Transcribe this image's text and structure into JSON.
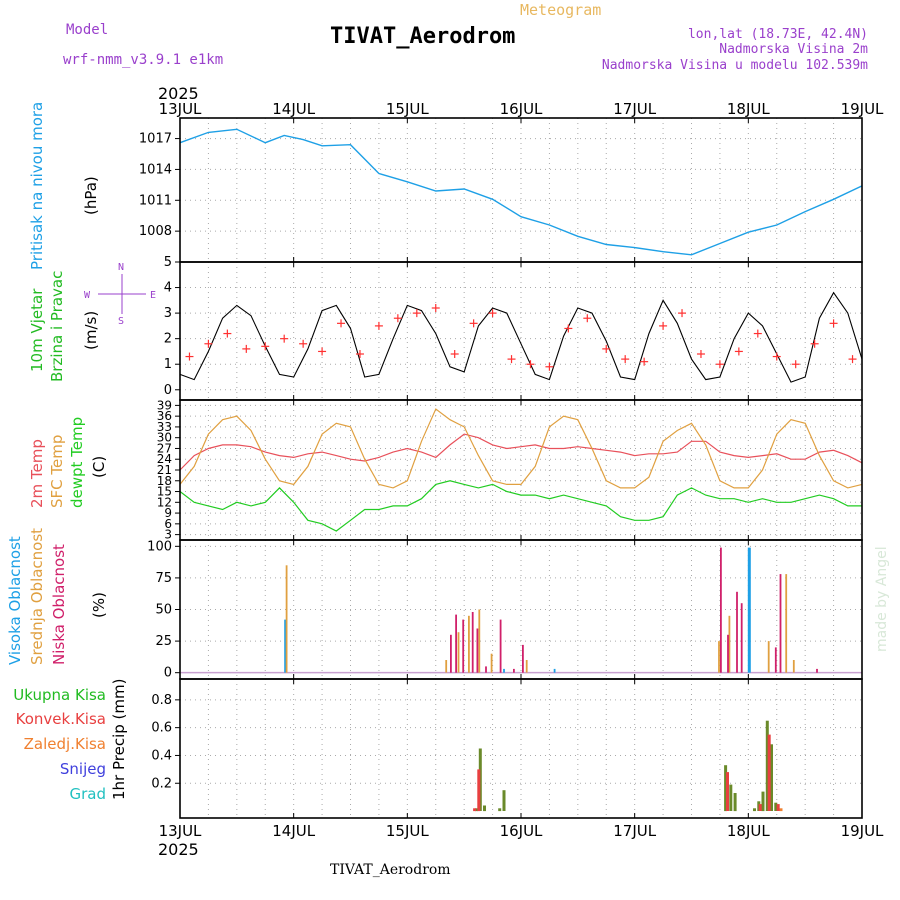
{
  "header": {
    "model_label": "Model",
    "model_name": "wrf-nmm_v3.9.1 e1km",
    "product": "Meteogram",
    "station": "TIVAT_Aerodrom",
    "lonlat": "lon,lat (18.73E, 42.4N)",
    "altitude": "Nadmorska Visina 2m",
    "model_altitude": "Nadmorska Visina u modelu 102.539m",
    "footer_station": "TIVAT_Aerodrom",
    "credit": "made by Angel"
  },
  "colors": {
    "pressure": "#1ea0e6",
    "temp2m": "#e8505a",
    "sfc_temp": "#e0a040",
    "dewpoint": "#22cc22",
    "high_cloud": "#1ea0e6",
    "mid_cloud": "#e0a040",
    "low_cloud": "#d0206a",
    "total_precip": "#22bb22",
    "conv_precip": "#e84040",
    "frozen_precip": "#f08030",
    "snow": "#4040dd",
    "hail": "#20c0c0",
    "wind_speed": "#000000",
    "gust": "#ff3030",
    "model_label": "#9a40cc",
    "meteogram_title": "#e8b860",
    "credit": "#d8e8d8",
    "dir_legend": "#9a40cc"
  },
  "time_axis": {
    "year_top": "2025",
    "year_bottom": "2025",
    "ticks": [
      "13JUL",
      "14JUL",
      "15JUL",
      "16JUL",
      "17JUL",
      "18JUL",
      "19JUL"
    ],
    "start_hour": 0,
    "end_hour": 144
  },
  "chart_data": [
    {
      "id": "pressure",
      "type": "line",
      "ylabel_left": "Pritisak na nivou mora",
      "ylabel_unit": "(hPa)",
      "ylim": [
        1005,
        1019
      ],
      "yticks": [
        1008,
        1011,
        1014,
        1017
      ],
      "grid": true,
      "x_hours": [
        0,
        6,
        12,
        18,
        22,
        26,
        30,
        36,
        42,
        48,
        54,
        60,
        66,
        72,
        78,
        84,
        90,
        96,
        102,
        108,
        114,
        120,
        126,
        132,
        138,
        144
      ],
      "values": [
        1016.6,
        1017.6,
        1017.9,
        1016.6,
        1017.3,
        1016.9,
        1016.3,
        1016.4,
        1013.6,
        1012.8,
        1011.9,
        1012.1,
        1011.1,
        1009.4,
        1008.6,
        1007.5,
        1006.7,
        1006.4,
        1006.0,
        1005.7,
        1006.8,
        1007.9,
        1008.6,
        1009.9,
        1011.1,
        1012.4
      ]
    },
    {
      "id": "wind",
      "type": "line",
      "ylabel_left_1": "10m Vjetar",
      "ylabel_left_2": "Brzina i Pravac",
      "ylabel_unit": "(m/s)",
      "direction_legend": [
        "N",
        "W",
        "E",
        "S"
      ],
      "ylim": [
        -0.4,
        5
      ],
      "yticks": [
        0,
        1,
        2,
        3,
        4,
        5
      ],
      "grid": true,
      "series": [
        {
          "name": "speed",
          "x_hours": [
            0,
            3,
            6,
            9,
            12,
            15,
            18,
            21,
            24,
            27,
            30,
            33,
            36,
            39,
            42,
            45,
            48,
            51,
            54,
            57,
            60,
            63,
            66,
            69,
            72,
            75,
            78,
            81,
            84,
            87,
            90,
            93,
            96,
            99,
            102,
            105,
            108,
            111,
            114,
            117,
            120,
            123,
            126,
            129,
            132,
            135,
            138,
            141,
            144
          ],
          "values": [
            0.6,
            0.4,
            1.5,
            2.8,
            3.3,
            2.9,
            1.7,
            0.6,
            0.5,
            1.6,
            3.1,
            3.3,
            2.4,
            0.5,
            0.6,
            2.0,
            3.3,
            3.1,
            2.2,
            0.9,
            0.7,
            2.5,
            3.2,
            3.0,
            1.8,
            0.6,
            0.4,
            2.1,
            3.2,
            3.0,
            1.9,
            0.5,
            0.4,
            2.2,
            3.5,
            2.6,
            1.2,
            0.4,
            0.5,
            2.0,
            3.0,
            2.5,
            1.4,
            0.3,
            0.5,
            2.8,
            3.8,
            3.0,
            1.2
          ]
        },
        {
          "name": "gust",
          "x_hours": [
            2,
            6,
            10,
            14,
            18,
            22,
            26,
            30,
            34,
            38,
            42,
            46,
            50,
            54,
            58,
            62,
            66,
            70,
            74,
            78,
            82,
            86,
            90,
            94,
            98,
            102,
            106,
            110,
            114,
            118,
            122,
            126,
            130,
            134,
            138,
            142
          ],
          "values": [
            1.3,
            1.8,
            2.2,
            1.6,
            1.7,
            2.0,
            1.8,
            1.5,
            2.6,
            1.4,
            2.5,
            2.8,
            3.0,
            3.2,
            1.4,
            2.6,
            3.0,
            1.2,
            1.0,
            0.9,
            2.4,
            2.8,
            1.6,
            1.2,
            1.1,
            2.5,
            3.0,
            1.4,
            1.0,
            1.5,
            2.2,
            1.3,
            1.0,
            1.8,
            2.6,
            1.2
          ]
        }
      ]
    },
    {
      "id": "temperature",
      "type": "line",
      "ylabel_left_1": "2m Temp",
      "ylabel_left_2": "SFC Temp",
      "ylabel_left_3": "dewpt Temp",
      "ylabel_unit": "(C)",
      "ylim": [
        1.5,
        40.5
      ],
      "yticks": [
        3,
        6,
        9,
        12,
        15,
        18,
        21,
        24,
        27,
        30,
        33,
        36,
        39
      ],
      "grid": true,
      "series": [
        {
          "name": "2m Temp",
          "x_hours": [
            0,
            3,
            6,
            9,
            12,
            15,
            18,
            21,
            24,
            27,
            30,
            33,
            36,
            39,
            42,
            45,
            48,
            51,
            54,
            57,
            60,
            63,
            66,
            69,
            72,
            75,
            78,
            81,
            84,
            87,
            90,
            93,
            96,
            99,
            102,
            105,
            108,
            111,
            114,
            117,
            120,
            123,
            126,
            129,
            132,
            135,
            138,
            141,
            144
          ],
          "values": [
            21,
            25,
            27,
            28,
            28,
            27.5,
            26,
            25,
            24.5,
            25.5,
            26,
            25,
            24,
            23.5,
            24.5,
            26,
            27,
            26,
            24.5,
            28,
            31,
            30,
            28,
            27,
            27.5,
            28,
            27,
            27,
            27.5,
            27,
            26.5,
            26,
            25,
            25.5,
            25.5,
            26,
            29,
            29,
            26,
            25,
            24.5,
            25,
            25.5,
            24,
            24,
            26,
            26.5,
            25,
            23
          ]
        },
        {
          "name": "SFC Temp",
          "x_hours": [
            0,
            3,
            6,
            9,
            12,
            15,
            18,
            21,
            24,
            27,
            30,
            33,
            36,
            39,
            42,
            45,
            48,
            51,
            54,
            57,
            60,
            63,
            66,
            69,
            72,
            75,
            78,
            81,
            84,
            87,
            90,
            93,
            96,
            99,
            102,
            105,
            108,
            111,
            114,
            117,
            120,
            123,
            126,
            129,
            132,
            135,
            138,
            141,
            144
          ],
          "values": [
            17,
            22,
            31,
            35,
            36,
            32,
            24,
            18,
            17,
            22,
            31,
            34,
            33,
            24,
            17,
            16,
            18,
            29,
            38,
            35,
            33,
            25,
            18,
            17,
            17,
            22,
            33,
            36,
            35,
            27,
            18,
            16,
            16,
            19,
            29,
            32,
            34,
            28,
            18,
            16,
            16,
            21,
            31,
            35,
            34,
            25,
            18,
            16,
            17
          ]
        },
        {
          "name": "dewpt Temp",
          "x_hours": [
            0,
            3,
            6,
            9,
            12,
            15,
            18,
            21,
            24,
            27,
            30,
            33,
            36,
            39,
            42,
            45,
            48,
            51,
            54,
            57,
            60,
            63,
            66,
            69,
            72,
            75,
            78,
            81,
            84,
            87,
            90,
            93,
            96,
            99,
            102,
            105,
            108,
            111,
            114,
            117,
            120,
            123,
            126,
            129,
            132,
            135,
            138,
            141,
            144
          ],
          "values": [
            15,
            12,
            11,
            10,
            12,
            11,
            12,
            16,
            12,
            7,
            6,
            4,
            7,
            10,
            10,
            11,
            11,
            13,
            17,
            18,
            17,
            16,
            17,
            15,
            14,
            14,
            13,
            14,
            13,
            12,
            11,
            8,
            7,
            7,
            8,
            14,
            16,
            14,
            13,
            13,
            12,
            13,
            12,
            12,
            13,
            14,
            13,
            11,
            11
          ]
        }
      ]
    },
    {
      "id": "clouds",
      "type": "bar",
      "ylabel_left_1": "Visoka Oblacnost",
      "ylabel_left_2": "Srednja Oblacnost",
      "ylabel_left_3": "Niska Oblacnost",
      "ylabel_unit": "(%)",
      "ylim": [
        -5,
        105
      ],
      "yticks": [
        0,
        25,
        50,
        75,
        100
      ],
      "grid": true,
      "series": [
        {
          "name": "Visoka Oblacnost",
          "x_hours": [
            22.2,
            68.4,
            79.1,
            120.2
          ],
          "values": [
            42,
            3,
            3,
            99
          ]
        },
        {
          "name": "Srednja Oblacnost",
          "x_hours": [
            22.5,
            56.2,
            58.8,
            61.0,
            63.2,
            65.8,
            73.2,
            113.8,
            116.0,
            124.3,
            128.0,
            129.6
          ],
          "values": [
            85,
            10,
            32,
            45,
            50,
            15,
            10,
            25,
            45,
            25,
            78,
            10
          ]
        },
        {
          "name": "Niska Oblacnost",
          "x_hours": [
            57.2,
            58.3,
            59.8,
            61.8,
            62.8,
            64.6,
            67.7,
            70.5,
            72.4,
            114.2,
            115.7,
            117.6,
            118.6,
            125.8,
            126.8,
            134.5
          ],
          "values": [
            30,
            46,
            42,
            48,
            35,
            5,
            42,
            3,
            22,
            99,
            30,
            64,
            55,
            20,
            78,
            3
          ]
        }
      ]
    },
    {
      "id": "precip",
      "type": "bar",
      "ylabel_left_1": "Ukupna Kisa",
      "ylabel_left_2": "Konvek.Kisa",
      "ylabel_left_3": "Zaledj.Kisa",
      "ylabel_left_4": "Snijeg",
      "ylabel_left_5": "Grad",
      "ylabel_unit": "1hr Precip (mm)",
      "ylim": [
        -0.05,
        0.95
      ],
      "yticks": [
        0.2,
        0.4,
        0.6,
        0.8
      ],
      "grid": true,
      "series": [
        {
          "name": "Ukupna Kisa",
          "x_hours": [
            62.6,
            63.4,
            64.3,
            67.5,
            68.4,
            115.2,
            116.3,
            117.2,
            121.3,
            122.2,
            123.1,
            124.0,
            124.9,
            125.8
          ],
          "values": [
            0.02,
            0.45,
            0.04,
            0.02,
            0.15,
            0.33,
            0.19,
            0.13,
            0.02,
            0.07,
            0.14,
            0.65,
            0.48,
            0.06
          ]
        },
        {
          "name": "Konvek.Kisa",
          "x_hours": [
            62.2,
            63.1,
            115.6,
            122.5,
            124.4,
            126.3
          ],
          "values": [
            0.02,
            0.3,
            0.28,
            0.05,
            0.55,
            0.05
          ]
        },
        {
          "name": "Zaledj.Kisa",
          "x_hours": [
            126.9
          ],
          "values": [
            0.02
          ]
        },
        {
          "name": "Snijeg",
          "x_hours": [],
          "values": []
        },
        {
          "name": "Grad",
          "x_hours": [],
          "values": []
        }
      ]
    }
  ]
}
